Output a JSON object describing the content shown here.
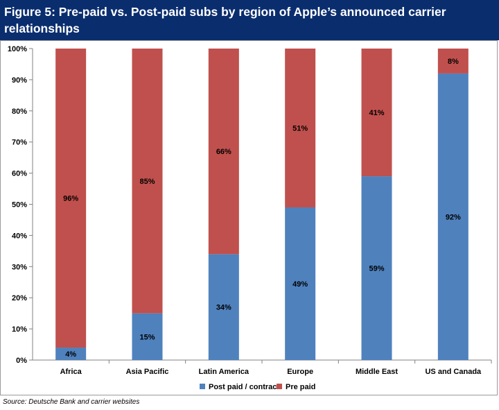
{
  "figure": {
    "title": "Figure 5: Pre-paid vs. Post-paid subs by region of Apple’s announced carrier relationships",
    "source": "Source: Deutsche Bank and carrier websites"
  },
  "colors": {
    "title_bg": "#0a2d6e",
    "post_paid": "#4f81bd",
    "pre_paid": "#c0504d"
  },
  "chart_data": {
    "type": "bar",
    "stacked": true,
    "title": "",
    "xlabel": "",
    "ylabel": "",
    "ylim": [
      0,
      100
    ],
    "y_tick_format": "percent",
    "y_ticks": [
      0,
      10,
      20,
      30,
      40,
      50,
      60,
      70,
      80,
      90,
      100
    ],
    "grid": false,
    "legend_position": "bottom",
    "categories": [
      "Africa",
      "Asia Pacific",
      "Latin America",
      "Europe",
      "Middle East",
      "US and Canada"
    ],
    "series": [
      {
        "name": "Post paid / contract",
        "values": [
          4,
          15,
          34,
          49,
          59,
          92
        ],
        "color": "#4f81bd"
      },
      {
        "name": "Pre paid",
        "values": [
          96,
          85,
          66,
          51,
          41,
          8
        ],
        "color": "#c0504d"
      }
    ],
    "data_labels": [
      [
        "4%",
        "15%",
        "34%",
        "49%",
        "59%",
        "92%"
      ],
      [
        "96%",
        "85%",
        "66%",
        "51%",
        "41%",
        "8%"
      ]
    ]
  }
}
